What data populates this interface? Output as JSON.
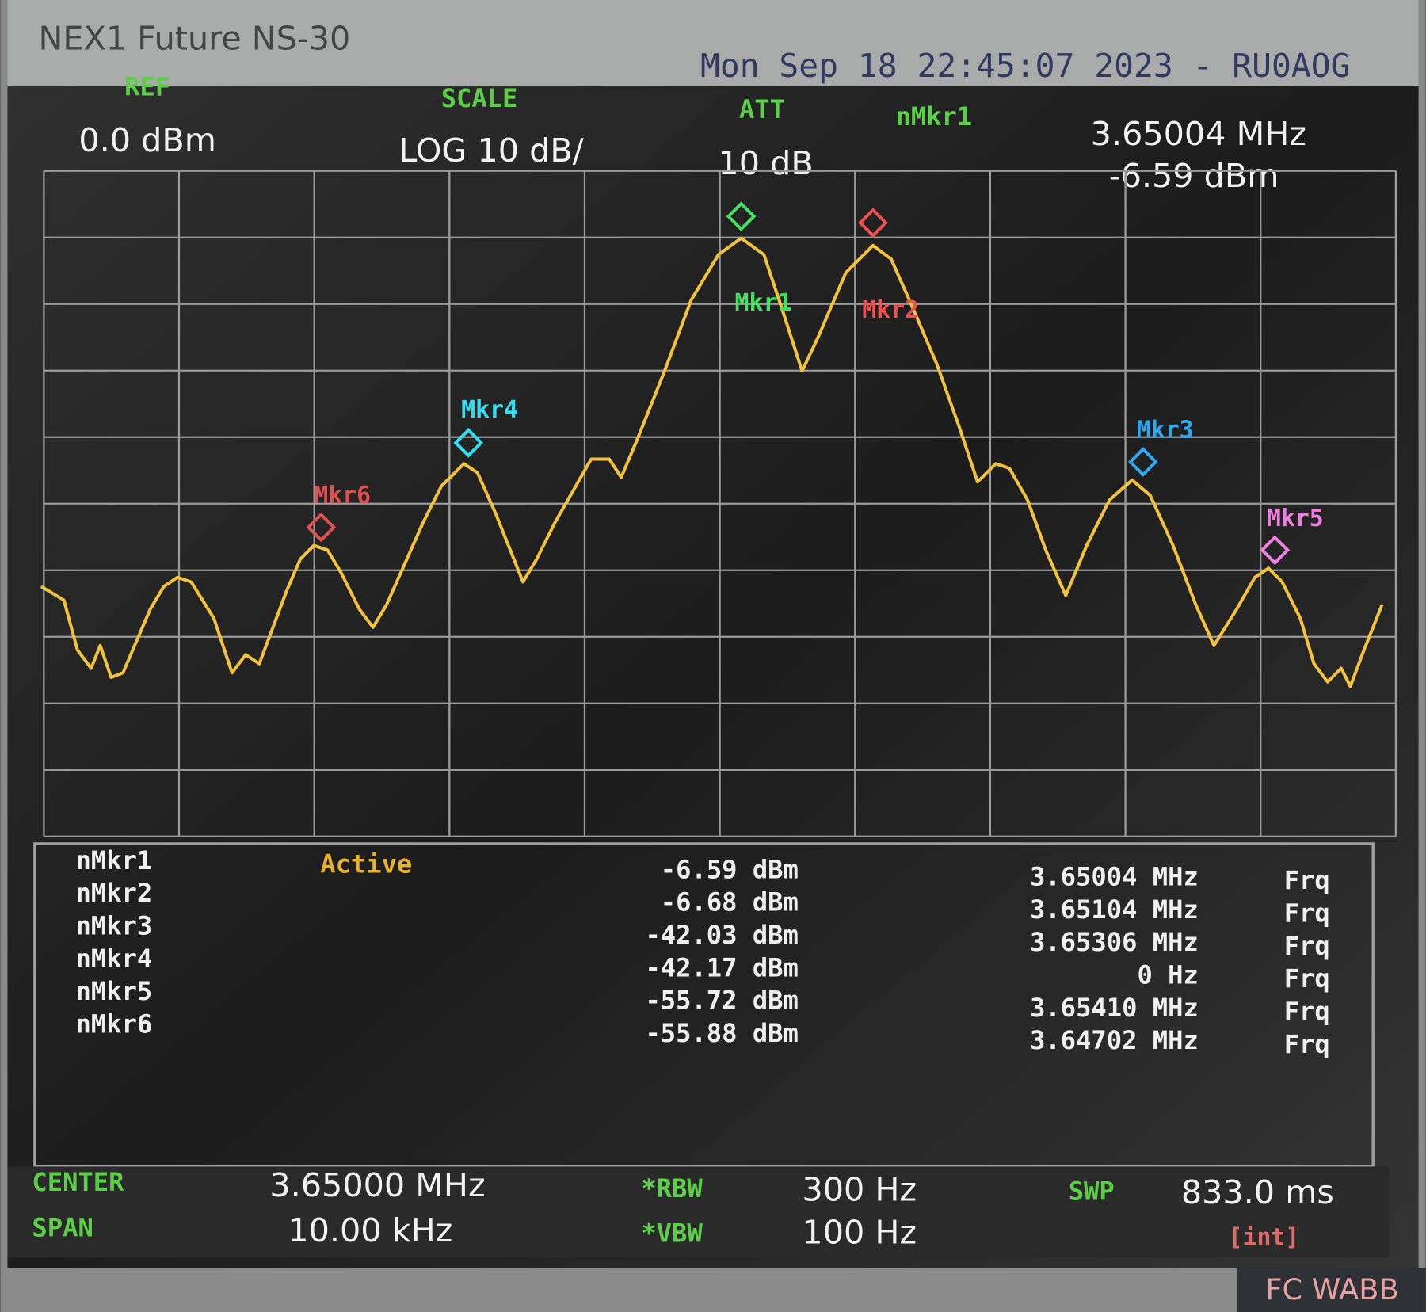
{
  "header": {
    "device": "NEX1 Future NS-30",
    "datetime": "Mon Sep 18 22:45:07 2023 - RU0AOG"
  },
  "settings": {
    "ref_label": "REF",
    "ref_value": "0.0 dBm",
    "scale_label": "SCALE",
    "scale_value": "LOG 10 dB/",
    "att_label": "ATT",
    "att_value": "10 dB",
    "active_marker_label": "nMkr1",
    "active_marker_freq": "3.65004 MHz",
    "active_marker_amp": "-6.59 dBm"
  },
  "plot_markers": [
    "Mkr1",
    "Mkr2",
    "Mkr3",
    "Mkr4",
    "Mkr5",
    "Mkr6"
  ],
  "marker_table": {
    "rows": [
      {
        "name": "nMkr1",
        "state": "Active",
        "amplitude": "-6.59 dBm",
        "frequency": "3.65004 MHz",
        "function": "Frq"
      },
      {
        "name": "nMkr2",
        "amplitude": "-6.68 dBm",
        "frequency": "3.65104 MHz",
        "function": "Frq"
      },
      {
        "name": "nMkr3",
        "amplitude": "-42.03 dBm",
        "frequency": "3.65306 MHz",
        "function": "Frq"
      },
      {
        "name": "nMkr4",
        "amplitude": "-42.17 dBm",
        "frequency": "0 Hz",
        "function": "Frq"
      },
      {
        "name": "nMkr5",
        "amplitude": "-55.72 dBm",
        "frequency": "3.65410 MHz",
        "function": "Frq"
      },
      {
        "name": "nMkr6",
        "amplitude": "-55.88 dBm",
        "frequency": "3.64702 MHz",
        "function": "Frq"
      }
    ]
  },
  "footer": {
    "center_label": "CENTER",
    "center_value": "3.65000 MHz",
    "span_label": "SPAN",
    "span_value": "10.00 kHz",
    "rbw_label": "*RBW",
    "rbw_value": "300 Hz",
    "vbw_label": "*VBW",
    "vbw_value": "100 Hz",
    "swp_label": "SWP",
    "swp_value": "833.0 ms",
    "swp_mode": "[int]"
  },
  "corner": "FC WABB"
}
